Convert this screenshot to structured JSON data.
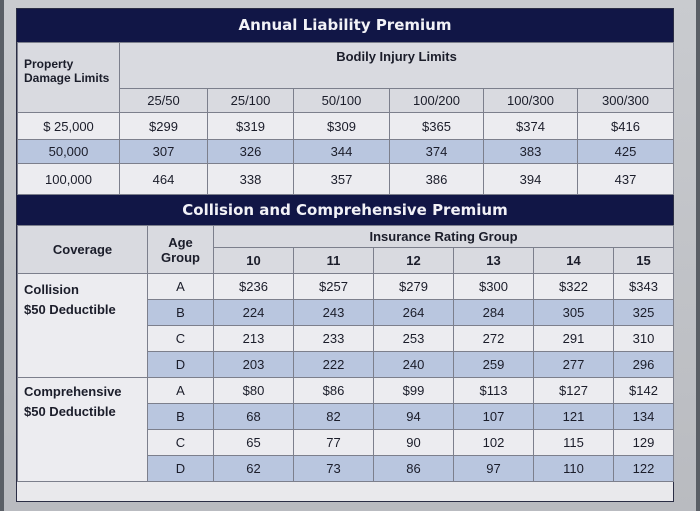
{
  "liability": {
    "title": "Annual Liability Premium",
    "row_header": "Property Damage Limits",
    "bi_header": "Bodily Injury Limits",
    "columns": [
      "25/50",
      "25/100",
      "50/100",
      "100/200",
      "100/300",
      "300/300"
    ],
    "rows": [
      {
        "label": "$ 25,000",
        "values": [
          "$299",
          "$319",
          "$309",
          "$365",
          "$374",
          "$416"
        ]
      },
      {
        "label": "50,000",
        "values": [
          "307",
          "326",
          "344",
          "374",
          "383",
          "425"
        ]
      },
      {
        "label": "100,000",
        "values": [
          "464",
          "338",
          "357",
          "386",
          "394",
          "437"
        ]
      }
    ]
  },
  "coll_comp": {
    "title": "Collision and Comprehensive Premium",
    "coverage_header": "Coverage",
    "age_header": "Age Group",
    "rating_header": "Insurance Rating Group",
    "columns": [
      "10",
      "11",
      "12",
      "13",
      "14",
      "15"
    ],
    "collision_label": "Collision",
    "collision_deductible": "$50 Deductible",
    "comprehensive_label": "Comprehensive",
    "comprehensive_deductible": "$50 Deductible",
    "collision_rows": [
      {
        "age": "A",
        "values": [
          "$236",
          "$257",
          "$279",
          "$300",
          "$322",
          "$343"
        ]
      },
      {
        "age": "B",
        "values": [
          "224",
          "243",
          "264",
          "284",
          "305",
          "325"
        ]
      },
      {
        "age": "C",
        "values": [
          "213",
          "233",
          "253",
          "272",
          "291",
          "310"
        ]
      },
      {
        "age": "D",
        "values": [
          "203",
          "222",
          "240",
          "259",
          "277",
          "296"
        ]
      }
    ],
    "comprehensive_rows": [
      {
        "age": "A",
        "values": [
          "$80",
          "$86",
          "$99",
          "$113",
          "$127",
          "$142"
        ]
      },
      {
        "age": "B",
        "values": [
          "68",
          "82",
          "94",
          "107",
          "121",
          "134"
        ]
      },
      {
        "age": "C",
        "values": [
          "65",
          "77",
          "90",
          "102",
          "115",
          "129"
        ]
      },
      {
        "age": "D",
        "values": [
          "62",
          "73",
          "86",
          "97",
          "110",
          "122"
        ]
      }
    ]
  }
}
